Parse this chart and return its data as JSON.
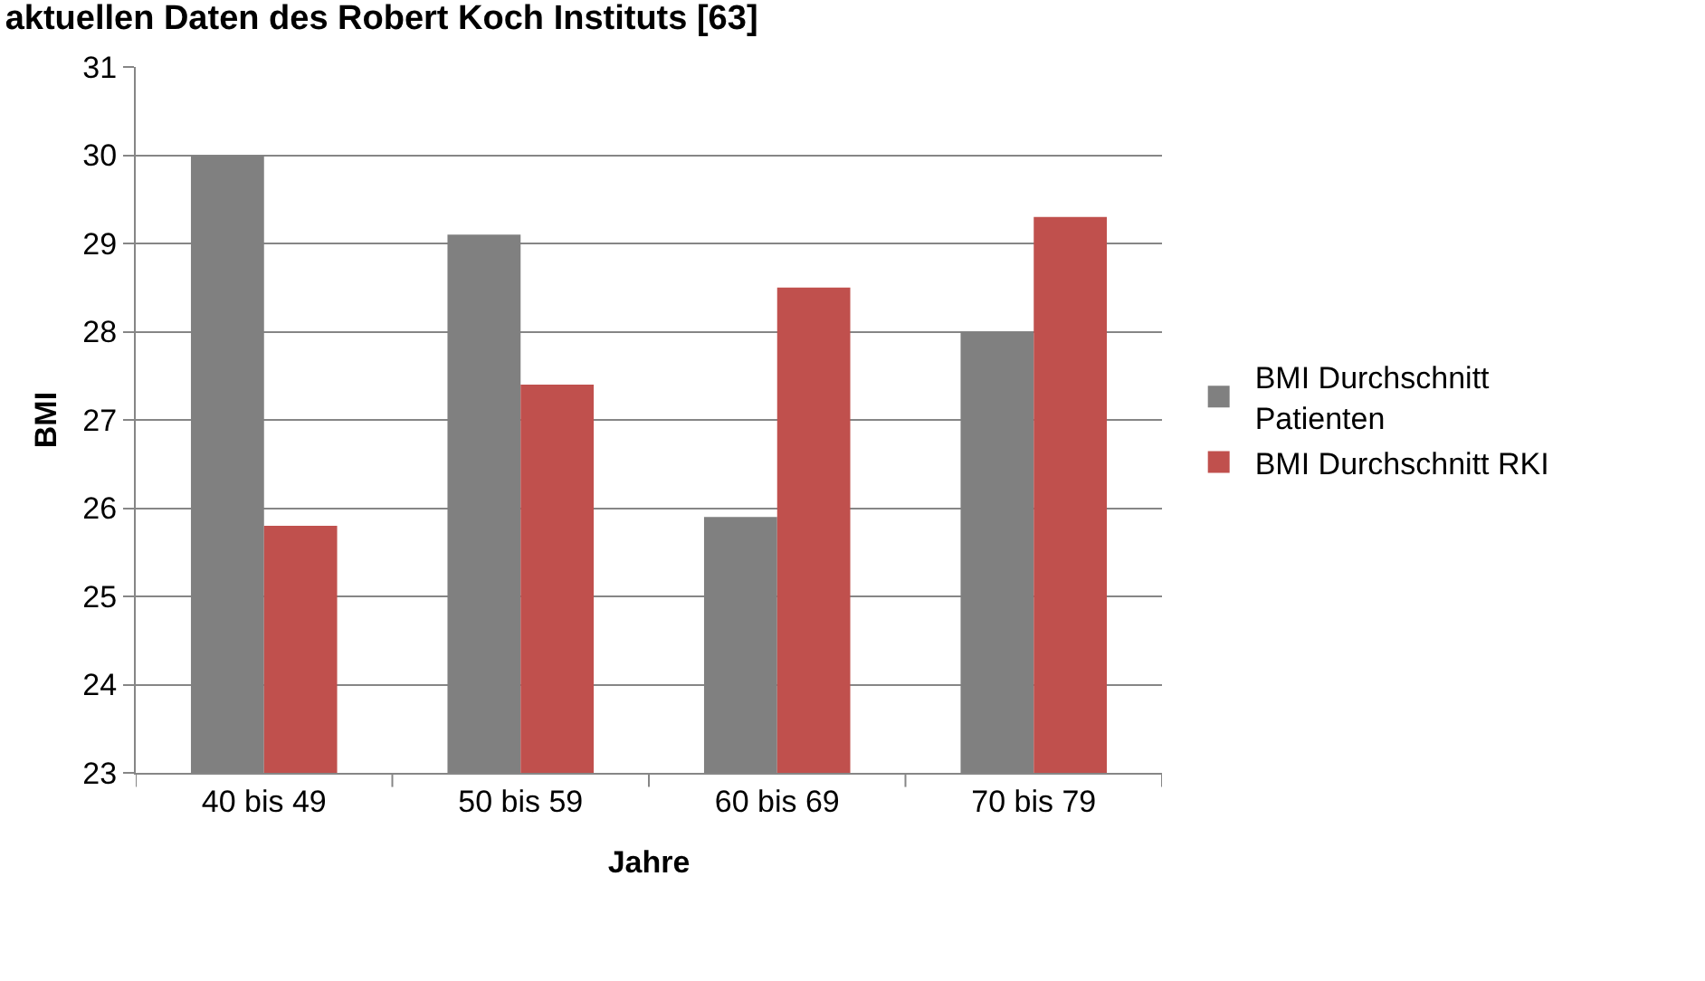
{
  "chart_data": {
    "type": "bar",
    "title": "aktuellen Daten des Robert Koch Instituts [63]",
    "xlabel": "Jahre",
    "ylabel": "BMI",
    "categories": [
      "40 bis 49",
      "50 bis 59",
      "60 bis 69",
      "70 bis 79"
    ],
    "series": [
      {
        "name": "BMI Durchschnitt Patienten",
        "color": "#808080",
        "values": [
          30.0,
          29.1,
          25.9,
          28.0
        ]
      },
      {
        "name": "BMI Durchschnitt RKI",
        "color": "#c0504d",
        "values": [
          25.8,
          27.4,
          28.5,
          29.3
        ]
      }
    ],
    "ylim": [
      23,
      31
    ],
    "yticks": [
      23,
      24,
      25,
      26,
      27,
      28,
      29,
      30,
      31
    ],
    "grid": "y",
    "legend": "right"
  }
}
